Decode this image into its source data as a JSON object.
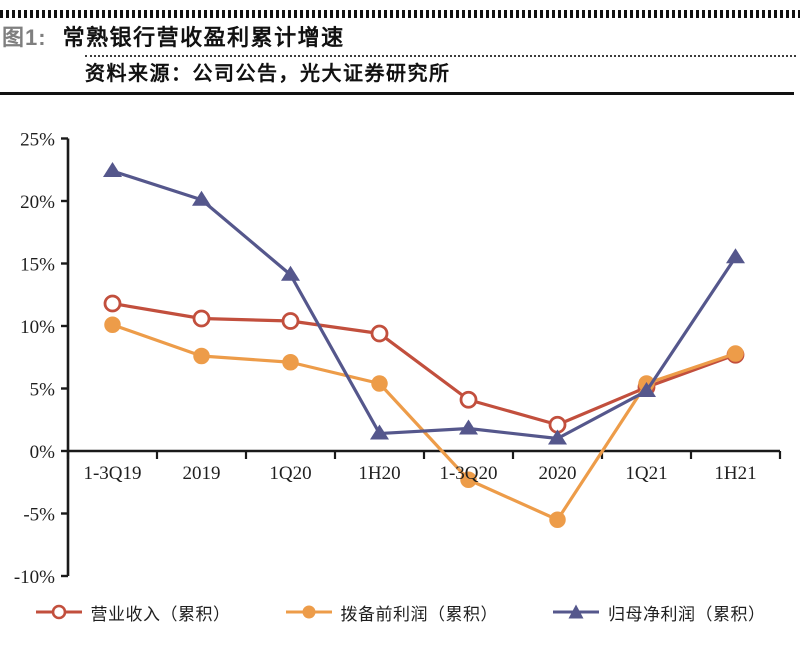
{
  "figure": {
    "label": "图1:",
    "title": "常熟银行营收盈利累计增速",
    "source": "资料来源：公司公告，光大证券研究所"
  },
  "chart_data": {
    "type": "line",
    "title": "常熟银行营收盈利累计增速",
    "categories": [
      "1-3Q19",
      "2019",
      "1Q20",
      "1H20",
      "1-3Q20",
      "2020",
      "1Q21",
      "1H21"
    ],
    "series": [
      {
        "name": "营业收入（累积）",
        "marker": "open-circle",
        "color": "#C24F3D",
        "values": [
          11.8,
          10.6,
          10.4,
          9.4,
          4.1,
          2.1,
          5.1,
          7.7
        ]
      },
      {
        "name": "拨备前利润（累积）",
        "marker": "filled-circle",
        "color": "#ED9C49",
        "values": [
          10.1,
          7.6,
          7.1,
          5.4,
          -2.3,
          -5.5,
          5.4,
          7.8
        ]
      },
      {
        "name": "归母净利润（累积）",
        "marker": "filled-triangle",
        "color": "#55578C",
        "values": [
          22.4,
          20.1,
          14.1,
          1.4,
          1.8,
          1.0,
          4.8,
          15.5
        ]
      }
    ],
    "ylim": [
      -10,
      25
    ],
    "ytick_step": 5,
    "ytick_labels": [
      "25%",
      "20%",
      "15%",
      "10%",
      "5%",
      "0%",
      "-5%",
      "-10%"
    ],
    "xlabel": "",
    "ylabel": "",
    "grid": false,
    "legend_position": "bottom",
    "axis_color": "#1a1a1a"
  }
}
